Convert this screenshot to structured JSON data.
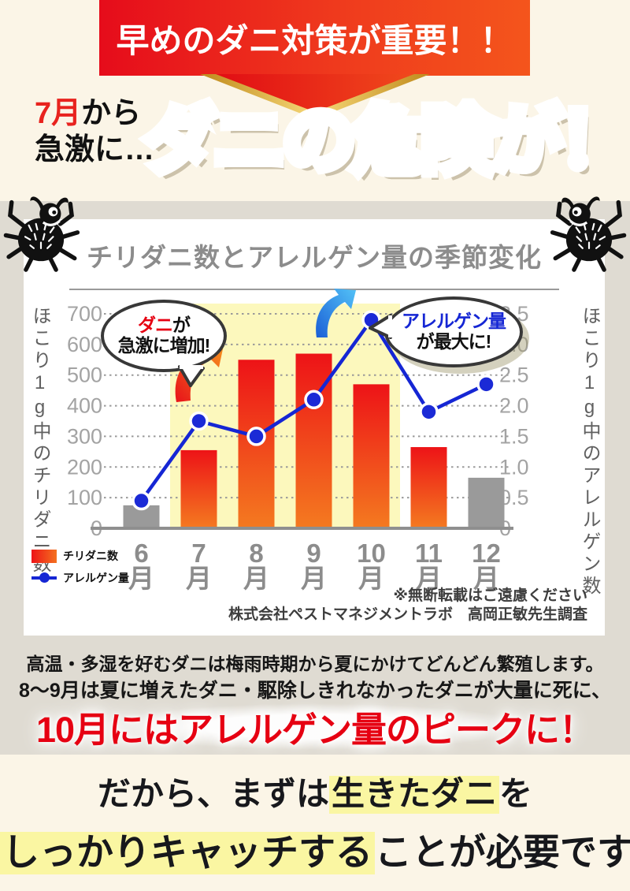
{
  "banner": {
    "text": "早めのダニ対策が重要！！"
  },
  "headline": {
    "sub_red": "7月",
    "sub_black": "から",
    "sub_line2": "急激に…",
    "main": "ダニの危険が！！"
  },
  "chart_card": {
    "title": "チリダニ数とアレルゲン量の季節変化",
    "legend": [
      {
        "label": "チリダニ数"
      },
      {
        "label": "アレルゲン量"
      }
    ],
    "bubble_mites": {
      "red": "ダニ",
      "black": "が",
      "line2": "急激に増加!"
    },
    "bubble_allergen": {
      "blue": "アレルゲン量",
      "line2": "が最大に!"
    },
    "notes": [
      "※無断転載はご遠慮ください",
      "株式会社ペストマネジメントラボ　高岡正敏先生調査"
    ]
  },
  "chart_data": {
    "type": "bar+line",
    "title": "チリダニ数とアレルゲン量の季節変化",
    "categories": [
      "6月",
      "7月",
      "8月",
      "9月",
      "10月",
      "11月",
      "12月"
    ],
    "series": [
      {
        "name": "チリダニ数",
        "type": "bar",
        "axis": "left",
        "values": [
          75,
          255,
          550,
          570,
          470,
          265,
          165
        ],
        "bar_colors": [
          "gray",
          "red",
          "red",
          "red",
          "red",
          "red",
          "gray"
        ]
      },
      {
        "name": "アレルゲン量",
        "type": "line",
        "axis": "right",
        "values": [
          0.45,
          1.75,
          1.5,
          2.1,
          3.4,
          1.9,
          2.35
        ]
      }
    ],
    "left_axis": {
      "label": "ほこり1g中のチリダニ数",
      "min": 0,
      "max": 700,
      "step": 100
    },
    "right_axis": {
      "label": "ほこり1g中のアレルゲン数",
      "min": 0,
      "max": 3.5,
      "step": 0.5
    },
    "highlight_band": {
      "from_month": "7月",
      "to_month": "10月",
      "color": "#fcf8bd"
    },
    "grid": "dotted-horizontal",
    "legend_position": "bottom-left"
  },
  "mid": {
    "line1": "高温・多湿を好むダニは梅雨時期から夏にかけてどんどん繁殖します。",
    "line2": "8～9月は夏に増えたダニ・駆除しきれなかったダニが大量に死に、",
    "line3": "10月にはアレルゲン量のピークに！"
  },
  "closing": {
    "line1_pre": "だから、まずは",
    "line1_hl": "生きたダニ",
    "line1_post": "を",
    "line2_hl": "しっかりキャッチする",
    "line2_post": "ことが必要です。"
  },
  "colors": {
    "cream_bg": "#fbf5e7",
    "gray_band": "#dfdbd2",
    "banner_red_left": "#e60c1b",
    "banner_red_right": "#f4551c",
    "bar_red_top": "#ed1317",
    "bar_red_bottom": "#f47a20",
    "bar_gray": "#9a9a9a",
    "line_blue": "#1526d4",
    "band_yellow": "#fcf8bd",
    "accent_red": "#e60012",
    "highlight_yellow": "#faf6a2"
  },
  "icons": {
    "mite": "cartoon mite/bug with horns",
    "arrow_orange": "curved upward arrow",
    "arrow_blue": "curved upward arrow"
  }
}
